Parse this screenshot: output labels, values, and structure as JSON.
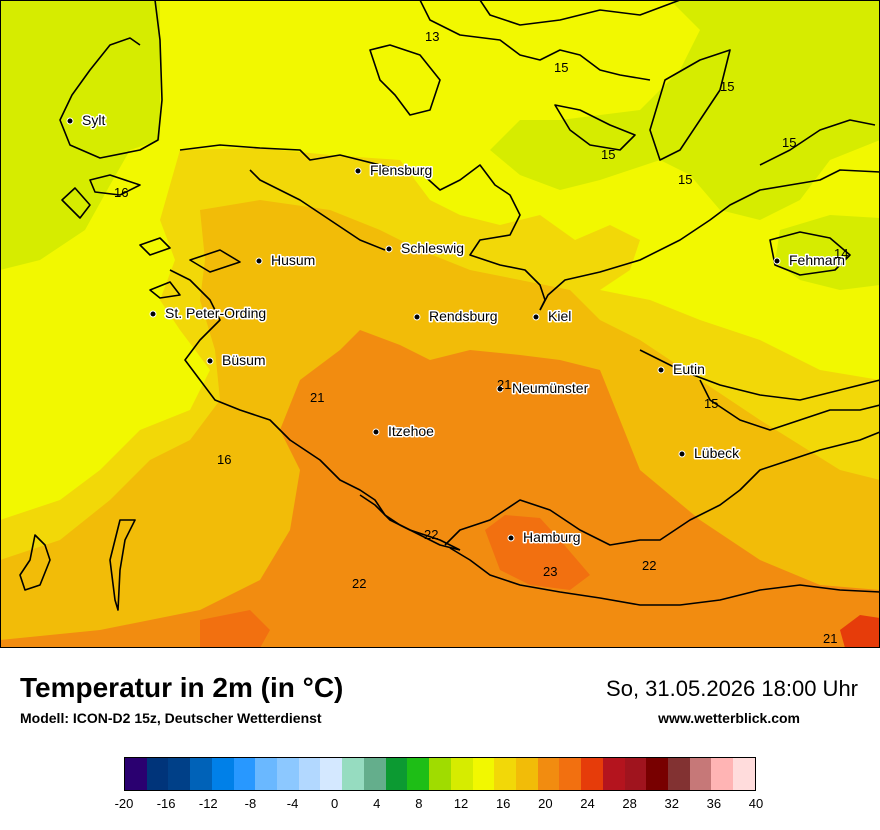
{
  "map": {
    "cities": [
      {
        "name": "Sylt"
      },
      {
        "name": "Flensburg"
      },
      {
        "name": "Husum"
      },
      {
        "name": "Schleswig"
      },
      {
        "name": "St. Peter-Ording"
      },
      {
        "name": "Rendsburg"
      },
      {
        "name": "Kiel"
      },
      {
        "name": "Fehmarn"
      },
      {
        "name": "Büsum"
      },
      {
        "name": "Eutin"
      },
      {
        "name": "Neumünster"
      },
      {
        "name": "Itzehoe"
      },
      {
        "name": "Lübeck"
      },
      {
        "name": "Hamburg"
      }
    ],
    "isoline_labels": [
      "13",
      "15",
      "15",
      "15",
      "15",
      "15",
      "16",
      "14",
      "21",
      "21",
      "15",
      "16",
      "22",
      "22",
      "23",
      "22",
      "21"
    ]
  },
  "footer": {
    "title": "Temperatur in 2m (in °C)",
    "model": "Modell: ICON-D2 15z, Deutscher Wetterdienst",
    "datetime": "So, 31.05.2026 18:00 Uhr",
    "website": "www.wetterblick.com"
  },
  "legend": {
    "colors": [
      "#2a0070",
      "#00347a",
      "#004088",
      "#0062b8",
      "#0080e8",
      "#2898ff",
      "#6ab8ff",
      "#8cc8ff",
      "#b2d8ff",
      "#d4e8ff",
      "#96dcc0",
      "#64ae8c",
      "#0c9a32",
      "#1ebe16",
      "#a0dc00",
      "#d6ec00",
      "#f2f800",
      "#f2d808",
      "#f2bc08",
      "#f28c10",
      "#f27010",
      "#e63c0a",
      "#b4141e",
      "#a0141e",
      "#780000",
      "#823232",
      "#c67878",
      "#ffb4b4",
      "#ffdcdc"
    ],
    "labels": [
      "-20",
      "-16",
      "-12",
      "-8",
      "-4",
      "0",
      "4",
      "8",
      "12",
      "16",
      "20",
      "24",
      "28",
      "32",
      "36",
      "40"
    ]
  }
}
